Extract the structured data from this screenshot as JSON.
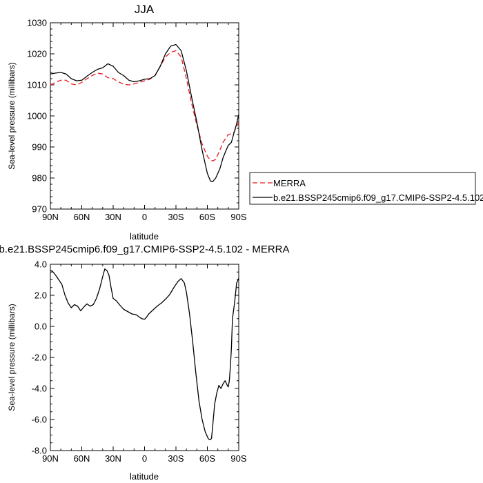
{
  "chart_data": [
    {
      "type": "line",
      "title": "JJA",
      "xlabel": "latitude",
      "ylabel": "Sea-level pressure (millibars)",
      "xlim": [
        -90,
        90
      ],
      "ylim": [
        970,
        1030
      ],
      "x_ticks": [
        {
          "value": -90,
          "label": "90N"
        },
        {
          "value": -60,
          "label": "60N"
        },
        {
          "value": -30,
          "label": "30N"
        },
        {
          "value": 0,
          "label": "0"
        },
        {
          "value": 30,
          "label": "30S"
        },
        {
          "value": 60,
          "label": "60S"
        },
        {
          "value": 90,
          "label": "90S"
        }
      ],
      "y_ticks": [
        {
          "value": 970,
          "label": "970"
        },
        {
          "value": 980,
          "label": "980"
        },
        {
          "value": 990,
          "label": "990"
        },
        {
          "value": 1000,
          "label": "1000"
        },
        {
          "value": 1010,
          "label": "1010"
        },
        {
          "value": 1020,
          "label": "1020"
        },
        {
          "value": 1030,
          "label": "1030"
        }
      ],
      "grid": false,
      "legend_position": "right",
      "series": [
        {
          "name": "MERRA",
          "color": "#e8191f",
          "dash": "dashed",
          "x": [
            -90,
            -85,
            -80,
            -75,
            -70,
            -65,
            -60,
            -55,
            -50,
            -45,
            -40,
            -35,
            -30,
            -25,
            -20,
            -15,
            -10,
            -5,
            0,
            5,
            10,
            15,
            20,
            25,
            30,
            35,
            40,
            45,
            50,
            55,
            60,
            63,
            65,
            68,
            72,
            75,
            80,
            85,
            88,
            90
          ],
          "y": [
            1010.0,
            1010.8,
            1011.5,
            1011.5,
            1010.3,
            1010.0,
            1010.8,
            1012.0,
            1013.0,
            1013.8,
            1013.5,
            1012.3,
            1012.0,
            1011.0,
            1010.2,
            1010.0,
            1010.3,
            1010.8,
            1011.3,
            1011.8,
            1013.0,
            1016.0,
            1019.0,
            1020.5,
            1021.0,
            1019.0,
            1012.0,
            1004.0,
            997.0,
            991.0,
            987.0,
            985.8,
            985.5,
            986.0,
            989.0,
            991.5,
            994.0,
            994.5,
            996.5,
            998.0
          ]
        },
        {
          "name": "b.e21.BSSP245cmip6.f09_g17.CMIP6-SSP2-4.5.102",
          "color": "#000000",
          "dash": "solid",
          "x": [
            -90,
            -85,
            -80,
            -75,
            -70,
            -65,
            -60,
            -55,
            -50,
            -45,
            -40,
            -35,
            -30,
            -25,
            -20,
            -15,
            -10,
            -5,
            0,
            5,
            10,
            15,
            20,
            25,
            30,
            35,
            40,
            45,
            50,
            55,
            60,
            63,
            65,
            68,
            72,
            75,
            78,
            80,
            83,
            85,
            88,
            90
          ],
          "y": [
            1013.5,
            1013.8,
            1014.0,
            1013.5,
            1012.0,
            1011.3,
            1011.5,
            1012.8,
            1014.0,
            1015.0,
            1015.5,
            1016.8,
            1016.0,
            1014.0,
            1013.0,
            1011.5,
            1011.0,
            1011.3,
            1011.8,
            1012.0,
            1013.0,
            1016.0,
            1020.0,
            1022.5,
            1023.0,
            1021.0,
            1014.5,
            1006.0,
            998.0,
            989.0,
            981.5,
            979.0,
            978.8,
            980.0,
            983.0,
            986.5,
            989.0,
            990.5,
            991.5,
            994.0,
            997.5,
            1000.5
          ]
        }
      ]
    },
    {
      "type": "line",
      "title": "b.e21.BSSP245cmip6.f09_g17.CMIP6-SSP2-4.5.102 - MERRA",
      "xlabel": "latitude",
      "ylabel": "Sea-level pressure (millibars)",
      "xlim": [
        -90,
        90
      ],
      "ylim": [
        -8,
        4
      ],
      "x_ticks": [
        {
          "value": -90,
          "label": "90N"
        },
        {
          "value": -60,
          "label": "60N"
        },
        {
          "value": -30,
          "label": "30N"
        },
        {
          "value": 0,
          "label": "0"
        },
        {
          "value": 30,
          "label": "30S"
        },
        {
          "value": 60,
          "label": "60S"
        },
        {
          "value": 90,
          "label": "90S"
        }
      ],
      "y_ticks": [
        {
          "value": -8,
          "label": "-8.0"
        },
        {
          "value": -6,
          "label": "-6.0"
        },
        {
          "value": -4,
          "label": "-4.0"
        },
        {
          "value": -2,
          "label": "-2.0"
        },
        {
          "value": 0,
          "label": "0.0"
        },
        {
          "value": 2,
          "label": "2.0"
        },
        {
          "value": 4,
          "label": "4.0"
        }
      ],
      "grid": false,
      "series": [
        {
          "color": "#000000",
          "dash": "solid",
          "x": [
            -90,
            -88,
            -85,
            -82,
            -79,
            -76,
            -73,
            -70,
            -67,
            -64,
            -61,
            -58,
            -55,
            -52,
            -49,
            -46,
            -43,
            -40,
            -38,
            -36,
            -34,
            -32,
            -30,
            -27,
            -24,
            -20,
            -16,
            -12,
            -8,
            -4,
            -2,
            0,
            2,
            4,
            8,
            12,
            16,
            20,
            24,
            28,
            32,
            35,
            38,
            40,
            43,
            46,
            49,
            52,
            55,
            58,
            61,
            63,
            64,
            65,
            67,
            69,
            71,
            73,
            75,
            77,
            79,
            80,
            81,
            82,
            83,
            84,
            86,
            88,
            90
          ],
          "y": [
            3.6,
            3.55,
            3.3,
            3.0,
            2.7,
            2.0,
            1.5,
            1.2,
            1.4,
            1.3,
            1.0,
            1.25,
            1.45,
            1.3,
            1.4,
            1.8,
            2.4,
            3.2,
            3.7,
            3.6,
            3.3,
            2.5,
            1.8,
            1.65,
            1.4,
            1.1,
            0.95,
            0.8,
            0.75,
            0.55,
            0.48,
            0.46,
            0.6,
            0.8,
            1.05,
            1.3,
            1.5,
            1.75,
            2.05,
            2.5,
            2.9,
            3.08,
            2.8,
            2.2,
            0.8,
            -1.0,
            -3.0,
            -4.8,
            -6.0,
            -6.8,
            -7.25,
            -7.3,
            -7.2,
            -6.5,
            -5.0,
            -4.3,
            -3.8,
            -4.0,
            -3.7,
            -3.5,
            -3.8,
            -3.9,
            -3.5,
            -2.6,
            -1.4,
            0.5,
            1.5,
            2.8,
            3.1
          ]
        }
      ]
    }
  ]
}
